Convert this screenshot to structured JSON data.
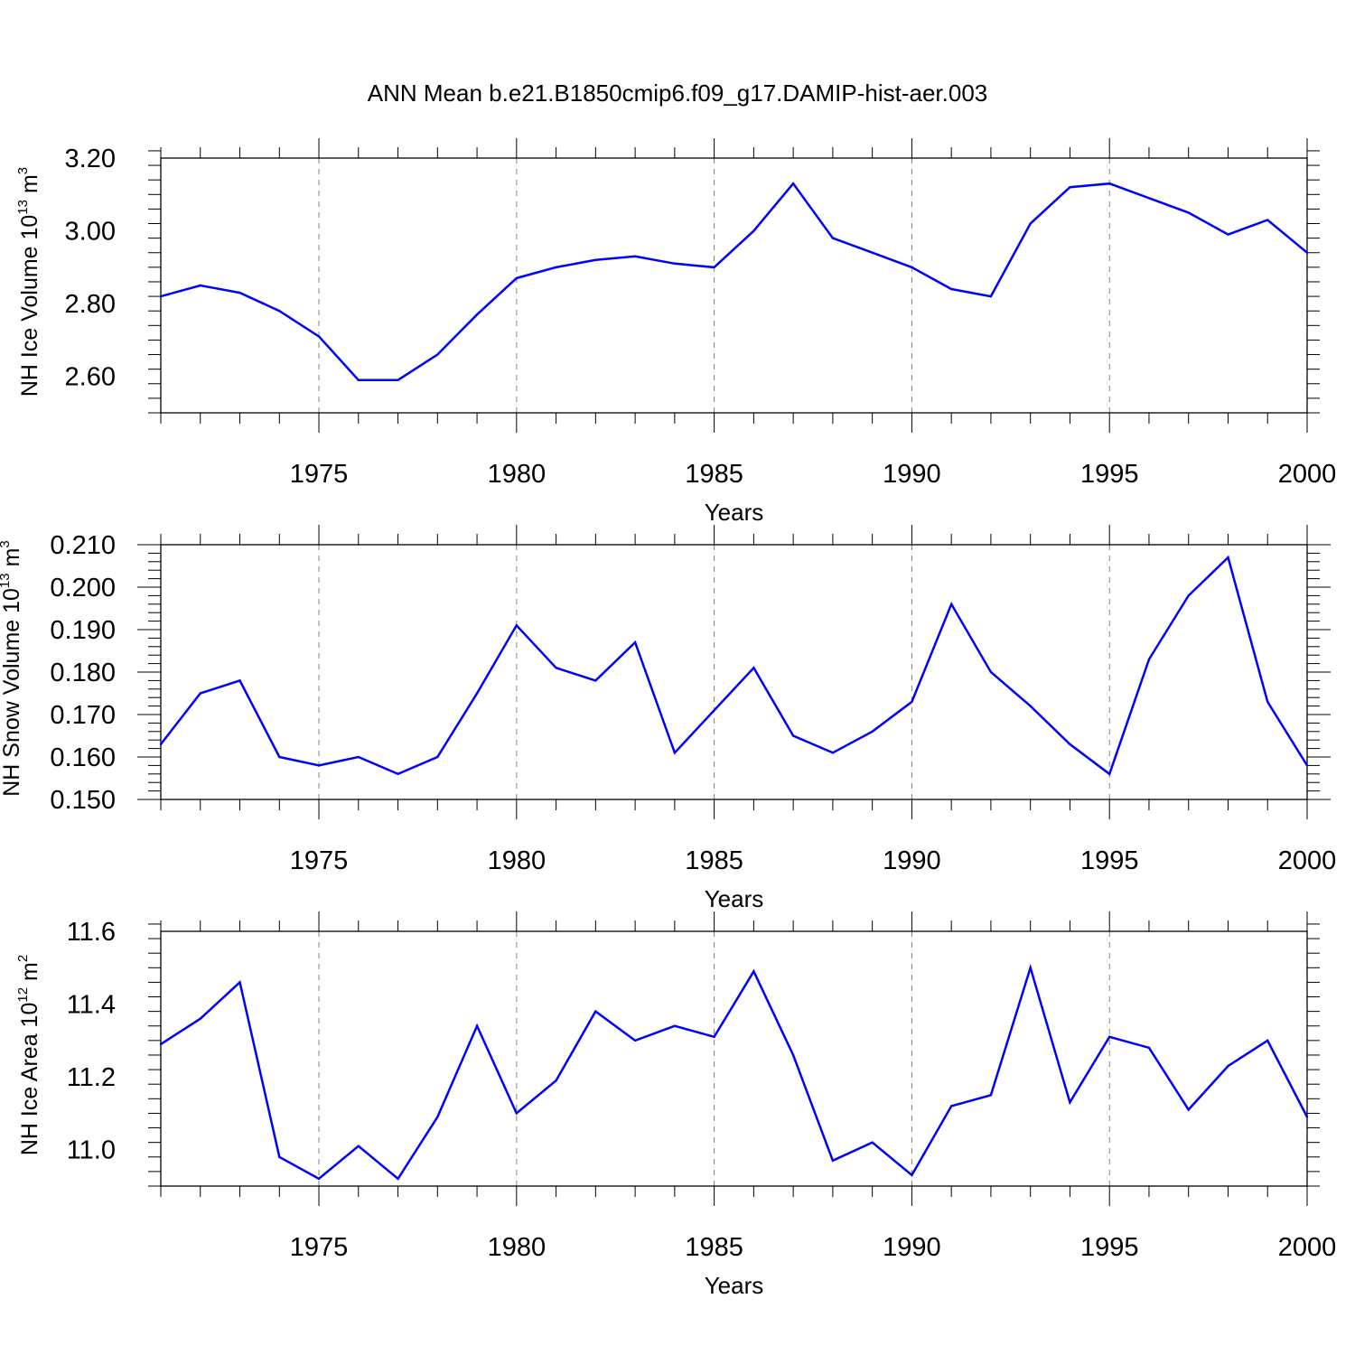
{
  "title": "ANN Mean b.e21.B1850cmip6.f09_g17.DAMIP-hist-aer.003",
  "colors": {
    "series": "#0000ff",
    "axis": "#000000",
    "grid": "#808080"
  },
  "chart_data": [
    {
      "type": "line",
      "xlabel": "Years",
      "ylabel": {
        "text": "NH Ice Volume 10",
        "sup1": "13",
        "unit": " m",
        "sup2": "3"
      },
      "xlim": [
        1971,
        2000
      ],
      "ylim": [
        2.5,
        3.2
      ],
      "x_ticks": [
        1975,
        1980,
        1985,
        1990,
        1995,
        2000
      ],
      "y_ticks": [
        "2.60",
        "2.80",
        "3.00",
        "3.20"
      ],
      "x_gridlines": [
        1975,
        1980,
        1985,
        1990,
        1995
      ],
      "x": [
        1971,
        1972,
        1973,
        1974,
        1975,
        1976,
        1977,
        1978,
        1979,
        1980,
        1981,
        1982,
        1983,
        1984,
        1985,
        1986,
        1987,
        1988,
        1989,
        1990,
        1991,
        1992,
        1993,
        1994,
        1995,
        1996,
        1997,
        1998,
        1999,
        2000
      ],
      "values": [
        2.82,
        2.85,
        2.83,
        2.78,
        2.71,
        2.59,
        2.59,
        2.66,
        2.77,
        2.87,
        2.9,
        2.92,
        2.93,
        2.91,
        2.9,
        3.0,
        3.13,
        2.98,
        2.94,
        2.9,
        2.84,
        2.82,
        3.02,
        3.12,
        3.13,
        3.09,
        3.05,
        2.99,
        3.03,
        2.94
      ]
    },
    {
      "type": "line",
      "xlabel": "Years",
      "ylabel": {
        "text": "NH Snow Volume 10",
        "sup1": "13",
        "unit": " m",
        "sup2": "3"
      },
      "xlim": [
        1971,
        2000
      ],
      "ylim": [
        0.15,
        0.21
      ],
      "x_ticks": [
        1975,
        1980,
        1985,
        1990,
        1995,
        2000
      ],
      "y_ticks": [
        "0.150",
        "0.160",
        "0.170",
        "0.180",
        "0.190",
        "0.200",
        "0.210"
      ],
      "x_gridlines": [
        1975,
        1980,
        1985,
        1990,
        1995
      ],
      "x": [
        1971,
        1972,
        1973,
        1974,
        1975,
        1976,
        1977,
        1978,
        1979,
        1980,
        1981,
        1982,
        1983,
        1984,
        1985,
        1986,
        1987,
        1988,
        1989,
        1990,
        1991,
        1992,
        1993,
        1994,
        1995,
        1996,
        1997,
        1998,
        1999,
        2000
      ],
      "values": [
        0.163,
        0.175,
        0.178,
        0.16,
        0.158,
        0.16,
        0.156,
        0.16,
        0.175,
        0.191,
        0.181,
        0.178,
        0.187,
        0.161,
        0.171,
        0.181,
        0.165,
        0.161,
        0.166,
        0.173,
        0.196,
        0.18,
        0.172,
        0.163,
        0.156,
        0.183,
        0.198,
        0.207,
        0.173,
        0.158
      ]
    },
    {
      "type": "line",
      "xlabel": "Years",
      "ylabel": {
        "text": "NH Ice Area 10",
        "sup1": "12",
        "unit": " m",
        "sup2": "2"
      },
      "xlim": [
        1971,
        2000
      ],
      "ylim": [
        10.9,
        11.6
      ],
      "x_ticks": [
        1975,
        1980,
        1985,
        1990,
        1995,
        2000
      ],
      "y_ticks": [
        "11.0",
        "11.2",
        "11.4",
        "11.6"
      ],
      "x_gridlines": [
        1975,
        1980,
        1985,
        1990,
        1995
      ],
      "x": [
        1971,
        1972,
        1973,
        1974,
        1975,
        1976,
        1977,
        1978,
        1979,
        1980,
        1981,
        1982,
        1983,
        1984,
        1985,
        1986,
        1987,
        1988,
        1989,
        1990,
        1991,
        1992,
        1993,
        1994,
        1995,
        1996,
        1997,
        1998,
        1999,
        2000
      ],
      "values": [
        11.29,
        11.36,
        11.46,
        10.98,
        10.92,
        11.01,
        10.92,
        11.09,
        11.34,
        11.1,
        11.19,
        11.38,
        11.3,
        11.34,
        11.31,
        11.49,
        11.26,
        10.97,
        11.02,
        10.93,
        11.12,
        11.15,
        11.5,
        11.13,
        11.31,
        11.28,
        11.11,
        11.23,
        11.3,
        11.09
      ]
    }
  ]
}
